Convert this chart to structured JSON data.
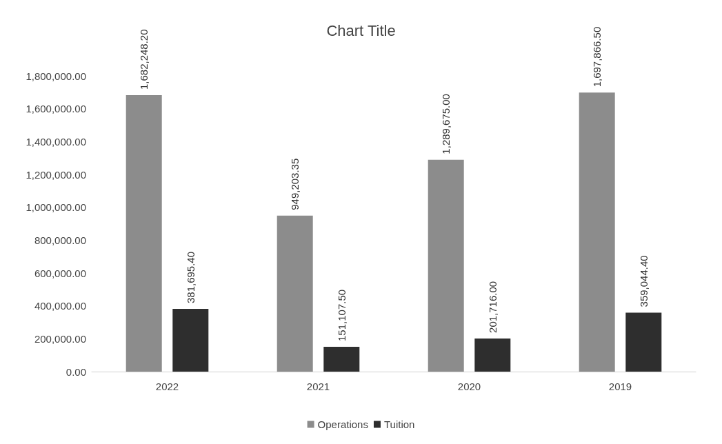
{
  "chart_data": {
    "type": "bar",
    "title": "Chart Title",
    "categories": [
      "2022",
      "2021",
      "2020",
      "2019"
    ],
    "series": [
      {
        "name": "Operations",
        "color": "#8c8c8c",
        "values": [
          1682248.2,
          949203.35,
          1289675,
          1697866.5
        ],
        "value_labels": [
          "1,682,248.20",
          "949,203.35",
          "1,289,675.00",
          "1,697,866.50"
        ]
      },
      {
        "name": "Tuition",
        "color": "#2e2e2e",
        "values": [
          381695.4,
          151107.5,
          201716,
          359044.4
        ],
        "value_labels": [
          "381,695.40",
          "151,107.50",
          "201,716.00",
          "359,044.40"
        ]
      }
    ],
    "ylim": [
      0,
      1800000
    ],
    "yticks": [
      {
        "value": 0,
        "label": "0.00"
      },
      {
        "value": 200000,
        "label": "200,000.00"
      },
      {
        "value": 400000,
        "label": "400,000.00"
      },
      {
        "value": 600000,
        "label": "600,000.00"
      },
      {
        "value": 800000,
        "label": "800,000.00"
      },
      {
        "value": 1000000,
        "label": "1,000,000.00"
      },
      {
        "value": 1200000,
        "label": "1,200,000.00"
      },
      {
        "value": 1400000,
        "label": "1,400,000.00"
      },
      {
        "value": 1600000,
        "label": "1,600,000.00"
      },
      {
        "value": 1800000,
        "label": "1,800,000.00"
      }
    ],
    "grid": false,
    "legend": "bottom"
  }
}
